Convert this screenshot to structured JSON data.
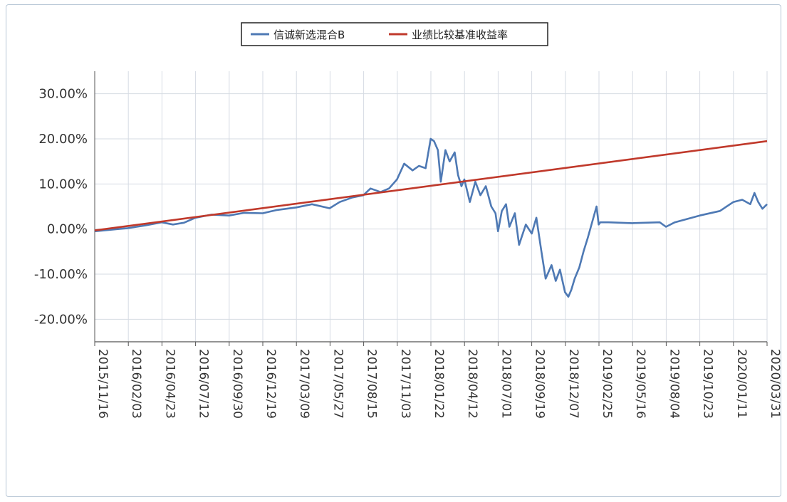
{
  "chart_data": {
    "type": "line",
    "y_unit": "%",
    "ylim": [
      -25,
      35
    ],
    "y_ticks": [
      -20,
      -10,
      0,
      10,
      20,
      30
    ],
    "y_tick_labels": [
      "-20.00%",
      "-10.00%",
      "0.00%",
      "10.00%",
      "20.00%",
      "30.00%"
    ],
    "x_tick_labels": [
      "2015/11/16",
      "2016/02/03",
      "2016/04/23",
      "2016/07/12",
      "2016/09/30",
      "2016/12/19",
      "2017/03/09",
      "2017/05/27",
      "2017/08/15",
      "2017/11/03",
      "2018/01/22",
      "2018/04/12",
      "2018/07/01",
      "2018/09/19",
      "2018/12/07",
      "2019/02/25",
      "2019/05/16",
      "2019/08/04",
      "2019/10/23",
      "2020/01/11",
      "2020/03/31"
    ],
    "grid": true,
    "legend_position": "top-center",
    "series": [
      {
        "name": "信诚新选混合B",
        "color": "#4e79b4",
        "x": [
          "2015/11/16",
          "2016/01/10",
          "2016/02/03",
          "2016/03/15",
          "2016/04/23",
          "2016/05/20",
          "2016/06/15",
          "2016/07/12",
          "2016/08/20",
          "2016/09/30",
          "2016/11/05",
          "2016/12/19",
          "2017/01/20",
          "2017/03/09",
          "2017/04/15",
          "2017/05/27",
          "2017/06/20",
          "2017/07/20",
          "2017/08/15",
          "2017/09/01",
          "2017/09/25",
          "2017/10/15",
          "2017/11/03",
          "2017/11/20",
          "2017/12/10",
          "2017/12/25",
          "2018/01/10",
          "2018/01/22",
          "2018/01/30",
          "2018/02/08",
          "2018/02/15",
          "2018/02/26",
          "2018/03/08",
          "2018/03/20",
          "2018/03/28",
          "2018/04/05",
          "2018/04/12",
          "2018/04/25",
          "2018/05/08",
          "2018/05/20",
          "2018/06/02",
          "2018/06/15",
          "2018/06/25",
          "2018/07/01",
          "2018/07/10",
          "2018/07/20",
          "2018/07/28",
          "2018/08/10",
          "2018/08/20",
          "2018/09/05",
          "2018/09/19",
          "2018/09/30",
          "2018/10/12",
          "2018/10/22",
          "2018/11/05",
          "2018/11/15",
          "2018/11/25",
          "2018/12/07",
          "2018/12/15",
          "2018/12/22",
          "2018/12/30",
          "2019/01/10",
          "2019/01/20",
          "2019/01/30",
          "2019/02/08",
          "2019/02/20",
          "2019/02/25",
          "2019/03/01",
          "2019/03/20",
          "2019/05/16",
          "2019/07/20",
          "2019/08/04",
          "2019/08/25",
          "2019/10/23",
          "2019/12/10",
          "2020/01/11",
          "2020/02/01",
          "2020/02/20",
          "2020/03/01",
          "2020/03/10",
          "2020/03/20",
          "2020/03/31"
        ],
        "values": [
          -0.5,
          0.0,
          0.2,
          0.8,
          1.5,
          1.0,
          1.4,
          2.5,
          3.2,
          3.0,
          3.6,
          3.5,
          4.2,
          4.8,
          5.5,
          4.6,
          6.0,
          7.0,
          7.5,
          9.0,
          8.2,
          9.0,
          11.0,
          14.5,
          13.0,
          14.0,
          13.5,
          20.0,
          19.5,
          17.5,
          10.5,
          17.5,
          15.0,
          17.0,
          12.0,
          9.5,
          11.0,
          6.0,
          10.5,
          7.5,
          9.5,
          5.0,
          3.5,
          -0.5,
          4.0,
          5.5,
          0.5,
          3.5,
          -3.5,
          1.0,
          -1.0,
          2.5,
          -5.0,
          -11.0,
          -8.0,
          -11.5,
          -9.0,
          -14.0,
          -15.0,
          -13.5,
          -11.0,
          -8.5,
          -5.0,
          -2.0,
          1.0,
          5.0,
          1.0,
          1.5,
          1.5,
          1.3,
          1.5,
          0.5,
          1.5,
          3.0,
          4.0,
          6.0,
          6.5,
          5.5,
          8.0,
          6.0,
          4.5,
          5.5
        ]
      },
      {
        "name": "业绩比较基准收益率",
        "color": "#c0392b",
        "x": [
          "2015/11/16",
          "2020/03/31"
        ],
        "values": [
          -0.3,
          19.5
        ]
      }
    ]
  }
}
